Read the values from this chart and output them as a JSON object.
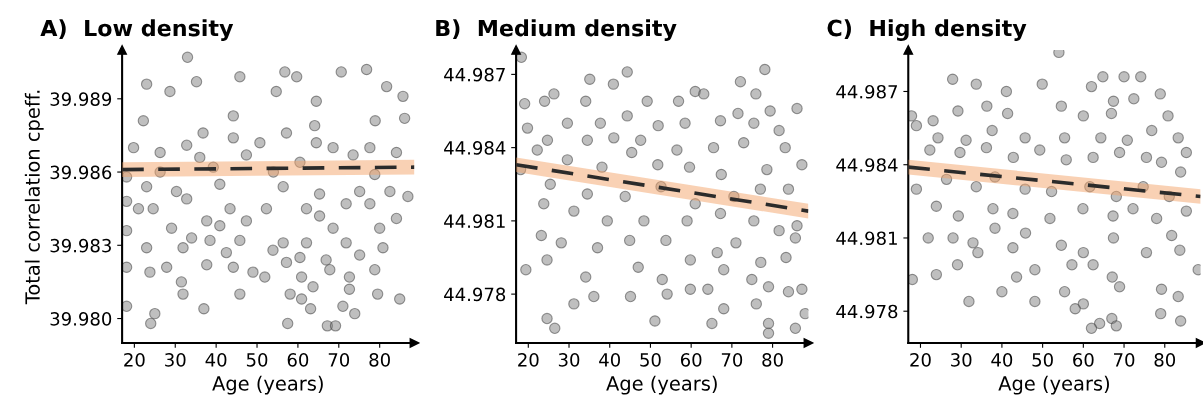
{
  "chart_data": [
    {
      "type": "scatter",
      "title": "A)  Low density",
      "xlabel": "Age (years)",
      "ylabel": "Total correlation cpeff.",
      "xlim": [
        17,
        88.5
      ],
      "ylim": [
        39.979,
        39.991
      ],
      "xticks": [
        20,
        30,
        40,
        50,
        60,
        70,
        80
      ],
      "yticks": [
        {
          "value": 39.98,
          "label": "39.980"
        },
        39.983,
        39.986,
        39.989
      ],
      "grid": false,
      "legend": false,
      "series": [
        {
          "marker": "circle",
          "color": "#808080",
          "x": [
            33,
            76.8,
            56.8,
            59.7,
            70.6,
            45.8,
            64.5,
            35.2,
            23.0,
            85.7,
            81.7,
            28.7,
            54.7,
            22.2,
            36.8,
            44.2,
            78.9,
            64.1,
            57.2,
            86.1,
            19.8,
            26.3,
            32.8,
            50.7,
            68.6,
            77.6,
            18.1,
            23.0,
            30.3,
            40.9,
            56.4,
            65.3,
            75.1,
            82.5,
            86.9,
            18.1,
            24.6,
            32.8,
            43.4,
            52.3,
            62.1,
            71.8,
            77.6,
            21.0,
            37.7,
            40.9,
            47.4,
            65.3,
            80.0,
            84.1,
            18.1,
            29.1,
            34.0,
            38.5,
            45.8,
            56.4,
            62.1,
            68.6,
            71.8,
            23.0,
            31.9,
            42.5,
            53.9,
            66.9,
            75.1,
            80.8,
            18.1,
            23.8,
            27.9,
            37.7,
            44.2,
            49.0,
            57.2,
            60.5,
            67.8,
            78.8,
            31.5,
            51.9,
            60.9,
            63.7,
            72.6,
            31.9,
            45.8,
            58.1,
            60.9,
            72.6,
            79.5,
            84.9,
            18.1,
            37.0,
            63.1,
            71.0,
            73.9,
            25.0,
            24.0,
            57.5,
            67.2,
            69.2,
            36.0,
            47.4,
            60.5,
            73.5,
            84.1,
            26.3,
            39.3,
            54.0,
            78.8,
            44.2,
            64.5
          ],
          "values": [
            39.9907,
            39.9902,
            39.9901,
            39.9899,
            39.9901,
            39.9899,
            39.9889,
            39.9897,
            39.9896,
            39.9891,
            39.9895,
            39.9893,
            39.9893,
            39.9881,
            39.9876,
            39.9883,
            39.9881,
            39.9879,
            39.9876,
            39.9882,
            39.987,
            39.9868,
            39.9871,
            39.9872,
            39.987,
            39.987,
            39.9858,
            39.9854,
            39.9852,
            39.9855,
            39.9854,
            39.9851,
            39.9852,
            39.9852,
            39.985,
            39.9848,
            39.9845,
            39.9849,
            39.9845,
            39.9845,
            39.9845,
            39.9847,
            39.9847,
            39.9845,
            39.984,
            39.9838,
            39.984,
            39.9842,
            39.9837,
            39.9841,
            39.9836,
            39.9837,
            39.9833,
            39.9832,
            39.9832,
            39.9831,
            39.9831,
            39.9837,
            39.9831,
            39.9829,
            39.9829,
            39.9827,
            39.9828,
            39.9824,
            39.9826,
            39.9829,
            39.9821,
            39.9819,
            39.9821,
            39.9822,
            39.9821,
            39.9819,
            39.9823,
            39.9825,
            39.982,
            39.982,
            39.9815,
            39.9817,
            39.9817,
            39.9813,
            39.9817,
            39.981,
            39.981,
            39.981,
            39.9808,
            39.9812,
            39.981,
            39.9808,
            39.9805,
            39.9804,
            39.9804,
            39.9805,
            39.9802,
            39.9802,
            39.9798,
            39.9798,
            39.9797,
            39.9797,
            39.9866,
            39.9867,
            39.9864,
            39.9867,
            39.9868,
            39.986,
            39.9862,
            39.986,
            39.9859,
            39.9874,
            39.9872
          ]
        },
        {
          "type": "line",
          "color": "#2b2b2b",
          "line_style": "dashed",
          "x": [
            17,
            88.5
          ],
          "values": [
            39.9861,
            39.9862
          ],
          "lower": [
            39.9858,
            39.9859
          ],
          "upper": [
            39.9864,
            39.9865
          ]
        }
      ]
    },
    {
      "type": "scatter",
      "title": "B)  Medium density",
      "xlabel": "Age (years)",
      "xlim": [
        17,
        88.8
      ],
      "ylim": [
        44.976,
        44.988
      ],
      "xticks": [
        20,
        30,
        40,
        50,
        60,
        70,
        80
      ],
      "yticks": [
        44.978,
        44.981,
        44.984,
        44.987
      ],
      "grid": false,
      "legend": false,
      "series": [
        {
          "marker": "circle",
          "color": "#808080",
          "x": [
            18.3,
            44.3,
            78.1,
            72.1,
            35.1,
            40.9,
            26.3,
            61.0,
            63.1,
            19.1,
            86.0,
            24.0,
            34.1,
            49.2,
            56.9,
            75.9,
            79.4,
            71.5,
            19.8,
            29.6,
            37.7,
            44.3,
            51.9,
            58.5,
            67.2,
            75.4,
            81.6,
            24.7,
            34.5,
            41.0,
            47.6,
            56.5,
            65.5,
            72.9,
            83.1,
            87.2,
            22.2,
            29.6,
            38.1,
            45.4,
            51.8,
            59.6,
            67.4,
            78.6,
            18.1,
            25.4,
            34.5,
            43.8,
            52.6,
            61.0,
            70.5,
            77.0,
            83.9,
            23.8,
            31.2,
            39.4,
            48.4,
            59.0,
            67.2,
            75.4,
            81.6,
            86.0,
            23.2,
            28.1,
            37.0,
            44.9,
            53.8,
            59.8,
            66.4,
            71.0,
            77.1,
            83.3,
            85.6,
            19.4,
            24.6,
            34.1,
            47.0,
            52.9,
            59.8,
            68.0,
            74.9,
            79.0,
            87.2,
            36.1,
            45.1,
            54.1,
            64.1,
            83.9,
            31.2,
            68.0,
            76.0,
            24.6,
            26.5,
            51.1,
            65.1,
            79.0,
            79.0,
            85.6,
            88.0
          ],
          "values": [
            44.9877,
            44.9871,
            44.9872,
            44.9867,
            44.9868,
            44.9866,
            44.9862,
            44.9863,
            44.9862,
            44.9858,
            44.9856,
            44.9859,
            44.9859,
            44.9859,
            44.9859,
            44.9862,
            44.9855,
            44.9854,
            44.9848,
            44.985,
            44.985,
            44.9853,
            44.9849,
            44.985,
            44.9851,
            44.985,
            44.9847,
            44.9843,
            44.9843,
            44.9844,
            44.9843,
            44.9839,
            44.984,
            44.9842,
            44.984,
            44.9833,
            44.9839,
            44.9835,
            44.9832,
            44.9838,
            44.9833,
            44.9832,
            44.9829,
            44.9831,
            44.9831,
            44.9825,
            44.9821,
            44.982,
            44.9824,
            44.9817,
            44.982,
            44.9823,
            44.9823,
            44.9817,
            44.9814,
            44.981,
            44.981,
            44.981,
            44.9813,
            44.981,
            44.9806,
            44.9808,
            44.9804,
            44.9801,
            44.9799,
            44.9802,
            44.9802,
            44.9794,
            44.9797,
            44.9801,
            44.9793,
            44.9795,
            44.9803,
            44.979,
            44.9794,
            44.9787,
            44.9791,
            44.9786,
            44.9782,
            44.979,
            44.9786,
            44.9783,
            44.9782,
            44.9779,
            44.9779,
            44.978,
            44.9782,
            44.9781,
            44.9776,
            44.9774,
            44.9776,
            44.977,
            44.9766,
            44.9769,
            44.9768,
            44.9768,
            44.9764,
            44.9766,
            44.9772
          ]
        },
        {
          "type": "line",
          "color": "#2b2b2b",
          "line_style": "dashed",
          "x": [
            17,
            88.8
          ],
          "values": [
            44.9833,
            44.9814
          ],
          "lower": [
            44.983,
            44.9811
          ],
          "upper": [
            44.9836,
            44.9817
          ]
        }
      ]
    },
    {
      "type": "scatter",
      "title": "C)  High density",
      "xlabel": "Age (years)",
      "xlim": [
        17,
        88.8
      ],
      "ylim": [
        44.9767,
        44.9887
      ],
      "xticks": [
        20,
        30,
        40,
        50,
        60,
        70,
        80
      ],
      "yticks": [
        44.978,
        44.981,
        44.984,
        44.987
      ],
      "grid": false,
      "legend": false,
      "series": [
        {
          "marker": "circle",
          "color": "#808080",
          "x": [
            54.0,
            64.8,
            70.0,
            74.1,
            27.9,
            49.9,
            41.1,
            78.9,
            62.0,
            33.7,
            67.4,
            72.4,
            17.8,
            23.1,
            29.2,
            36.3,
            41.4,
            54.6,
            60.0,
            66.9,
            80.8,
            19.0,
            24.3,
            31.2,
            37.6,
            45.7,
            55.4,
            64.3,
            70.8,
            76.8,
            83.3,
            85.3,
            22.3,
            29.7,
            36.2,
            42.8,
            49.3,
            55.8,
            62.4,
            68.9,
            75.5,
            79.2,
            83.9,
            19.0,
            26.4,
            33.7,
            38.3,
            45.7,
            52.2,
            61.6,
            68.1,
            74.7,
            81.1,
            23.9,
            29.3,
            37.8,
            42.7,
            51.8,
            59.9,
            67.3,
            72.2,
            78.0,
            85.3,
            21.9,
            28.0,
            32.9,
            38.3,
            42.7,
            45.8,
            54.6,
            60.0,
            67.4,
            75.5,
            81.7,
            83.7,
            29.1,
            34.1,
            23.9,
            48.1,
            57.2,
            62.4,
            67.1,
            88.2,
            18.0,
            43.6,
            68.9,
            79.2,
            83.3,
            40.0,
            48.1,
            31.9,
            55.4,
            60.0,
            58.0,
            79.0,
            83.9,
            67.0,
            68.1,
            64.0,
            62.0
          ],
          "values": [
            44.9886,
            44.9876,
            44.9876,
            44.9876,
            44.9875,
            44.9873,
            44.987,
            44.9869,
            44.9872,
            44.9873,
            44.9866,
            44.9867,
            44.986,
            44.9858,
            44.9862,
            44.9864,
            44.9861,
            44.9864,
            44.986,
            44.9861,
            44.986,
            44.9856,
            44.9851,
            44.985,
            44.9854,
            44.9851,
            44.9851,
            44.9851,
            44.985,
            44.9854,
            44.9851,
            44.9845,
            44.9846,
            44.9845,
            44.9847,
            44.9843,
            44.9846,
            44.9842,
            44.9843,
            44.9845,
            44.9843,
            44.9841,
            44.9837,
            44.983,
            44.9834,
            44.9831,
            44.9835,
            44.983,
            44.9829,
            44.9831,
            44.9827,
            44.9831,
            44.9827,
            44.9823,
            44.9819,
            44.9822,
            44.982,
            44.9818,
            44.9822,
            44.9819,
            44.9822,
            44.9818,
            44.9821,
            44.981,
            44.981,
            44.9808,
            44.9814,
            44.9806,
            44.9812,
            44.9807,
            44.9804,
            44.981,
            44.9804,
            44.9811,
            44.9805,
            44.9799,
            44.9804,
            44.9795,
            44.9797,
            44.9799,
            44.9799,
            44.9794,
            44.9797,
            44.9793,
            44.9794,
            44.979,
            44.9789,
            44.9786,
            44.9788,
            44.9784,
            44.9784,
            44.9788,
            44.9783,
            44.9781,
            44.9779,
            44.9776,
            44.9777,
            44.9774,
            44.9775,
            44.9773
          ]
        },
        {
          "type": "line",
          "color": "#2b2b2b",
          "line_style": "dashed",
          "x": [
            17,
            88.8
          ],
          "values": [
            44.9839,
            44.9827
          ],
          "lower": [
            44.9836,
            44.9824
          ],
          "upper": [
            44.9842,
            44.983
          ]
        }
      ]
    }
  ]
}
